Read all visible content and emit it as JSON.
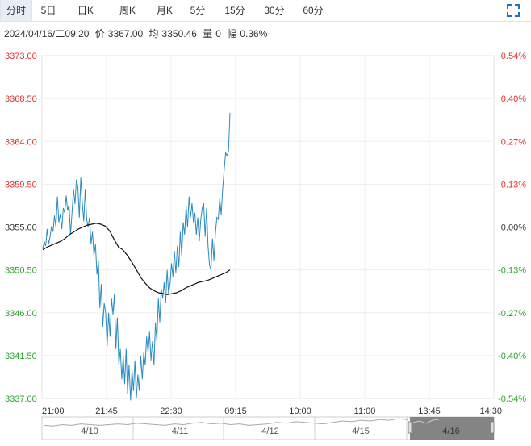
{
  "tabs": [
    {
      "label": "分时",
      "active": true
    },
    {
      "label": "5日",
      "active": false
    },
    {
      "label": "日K",
      "active": false
    },
    {
      "label": "周K",
      "active": false
    },
    {
      "label": "月K",
      "active": false
    },
    {
      "label": "5分",
      "active": false
    },
    {
      "label": "15分",
      "active": false
    },
    {
      "label": "30分",
      "active": false
    },
    {
      "label": "60分",
      "active": false
    }
  ],
  "expand_icon": "expand-icon",
  "info": {
    "datetime": "2024/04/16/二09:20",
    "price_label": "价",
    "price": "3367.00",
    "avg_label": "均",
    "avg": "3350.46",
    "vol_label": "量",
    "vol": "0",
    "pct_label": "幅",
    "pct": "0.36%"
  },
  "colors": {
    "up": "#e0302b",
    "down": "#27a52b",
    "price_line": "#2a8bc0",
    "avg_line": "#111111",
    "grid": "#eeeeee",
    "baseline": "#999999",
    "nav_fill": "#777777"
  },
  "chart_data": {
    "type": "line",
    "title": "",
    "y_left_ticks": [
      "3373.00",
      "3368.50",
      "3364.00",
      "3359.50",
      "3355.00",
      "3350.50",
      "3346.00",
      "3341.50",
      "3337.00"
    ],
    "y_right_ticks": [
      "0.54%",
      "0.40%",
      "0.27%",
      "0.13%",
      "0.00%",
      "-0.13%",
      "-0.27%",
      "-0.40%",
      "-0.54%"
    ],
    "x_ticks": [
      "21:00",
      "21:45",
      "22:30",
      "09:15",
      "10:00",
      "11:00",
      "13:45",
      "14:30"
    ],
    "ylim": [
      3337.0,
      3373.0
    ],
    "baseline": 3355.0,
    "series": [
      {
        "kind": "price",
        "values": [
          3352.7,
          3353.5,
          3353.0,
          3354.8,
          3353.2,
          3354.0,
          3355.1,
          3354.5,
          3356.2,
          3355.0,
          3358.2,
          3355.5,
          3356.4,
          3354.8,
          3357.0,
          3356.5,
          3358.3,
          3356.7,
          3357.3,
          3354.2,
          3356.6,
          3359.0,
          3357.4,
          3360.0,
          3359.2,
          3356.0,
          3360.2,
          3357.6,
          3355.6,
          3359.0,
          3355.8,
          3355.0,
          3356.0,
          3353.2,
          3354.5,
          3352.0,
          3353.2,
          3350.0,
          3351.5,
          3346.5,
          3349.0,
          3344.5,
          3347.0,
          3346.0,
          3342.5,
          3346.0,
          3343.5,
          3347.5,
          3345.8,
          3348.0,
          3342.2,
          3345.5,
          3340.5,
          3342.2,
          3339.0,
          3341.5,
          3338.5,
          3342.2,
          3337.5,
          3340.5,
          3336.8,
          3340.0,
          3337.8,
          3341.0,
          3337.0,
          3339.5,
          3337.8,
          3341.5,
          3339.0,
          3341.8,
          3340.5,
          3343.5,
          3341.8,
          3344.0,
          3341.0,
          3343.0,
          3340.5,
          3345.0,
          3343.0,
          3347.5,
          3345.0,
          3348.5,
          3347.5,
          3349.2,
          3347.0,
          3350.5,
          3348.0,
          3349.0,
          3351.2,
          3349.8,
          3352.5,
          3350.2,
          3353.0,
          3350.8,
          3354.5,
          3352.0,
          3355.5,
          3354.2,
          3357.2,
          3355.0,
          3358.2,
          3356.0,
          3357.5,
          3355.5,
          3356.5,
          3354.2,
          3356.0,
          3353.5,
          3355.8,
          3357.0,
          3357.5,
          3354.0,
          3357.0,
          3353.0,
          3351.0,
          3350.5,
          3353.8,
          3351.5,
          3354.3,
          3356.0,
          3355.8,
          3358.0,
          3356.3,
          3359.0,
          3361.0,
          3362.8,
          3362.5,
          3363.0,
          3367.0
        ],
        "x_index_start": 0
      },
      {
        "kind": "avg",
        "values": [
          3352.6,
          3352.9,
          3353.1,
          3353.3,
          3353.5,
          3353.8,
          3354.2,
          3354.5,
          3354.8,
          3355.0,
          3355.2,
          3355.3,
          3355.4,
          3355.3,
          3355.1,
          3354.6,
          3353.7,
          3352.9,
          3352.6,
          3352.0,
          3351.3,
          3350.5,
          3349.7,
          3349.1,
          3348.6,
          3348.3,
          3348.1,
          3348.0,
          3347.9,
          3348.0,
          3348.1,
          3348.3,
          3348.6,
          3348.8,
          3349.0,
          3349.2,
          3349.3,
          3349.4,
          3349.6,
          3349.8,
          3350.0,
          3350.2,
          3350.5
        ],
        "x_index_start": 0,
        "x_step": 3
      }
    ]
  },
  "navigator": {
    "labels": [
      "4/10",
      "4/11",
      "4/12",
      "4/15",
      "4/16"
    ]
  }
}
